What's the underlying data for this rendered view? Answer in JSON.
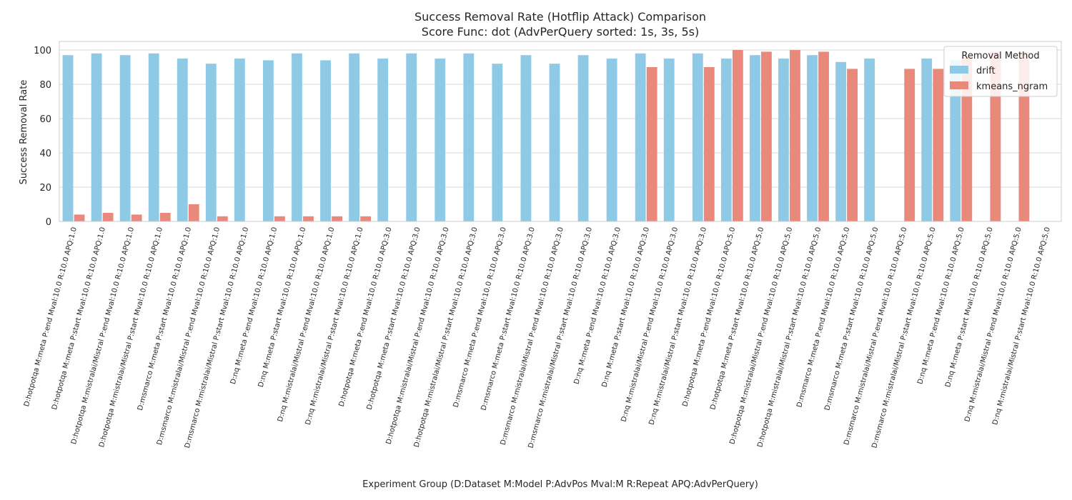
{
  "chart_data": {
    "type": "bar",
    "title": "Success Removal Rate (Hotflip Attack) Comparison",
    "subtitle": "Score Func: dot (AdvPerQuery sorted: 1s, 3s, 5s)",
    "xlabel": "Experiment Group (D:Dataset M:Model P:AdvPos Mval:M R:Repeat APQ:AdvPerQuery)",
    "ylabel": "Success Removal Rate",
    "ylim": [
      0,
      105
    ],
    "yticks": [
      0,
      20,
      40,
      60,
      80,
      100
    ],
    "grid": true,
    "legend": {
      "title": "Removal Method",
      "placement": "top-right"
    },
    "categories": [
      "D:hotpotqa M:meta P:end Mval:10.0 R:10.0 APQ:1.0",
      "D:hotpotqa M:meta P:start Mval:10.0 R:10.0 APQ:1.0",
      "D:hotpotqa M:mistralai/Mistral P:end Mval:10.0 R:10.0 APQ:1.0",
      "D:hotpotqa M:mistralai/Mistral P:start Mval:10.0 R:10.0 APQ:1.0",
      "D:msmarco M:meta P:start Mval:10.0 R:10.0 APQ:1.0",
      "D:msmarco M:mistralai/Mistral P:end Mval:10.0 R:10.0 APQ:1.0",
      "D:msmarco M:mistralai/Mistral P:start Mval:10.0 R:10.0 APQ:1.0",
      "D:nq M:meta P:end Mval:10.0 R:10.0 APQ:1.0",
      "D:nq M:meta P:start Mval:10.0 R:10.0 APQ:1.0",
      "D:nq M:mistralai/Mistral P:end Mval:10.0 R:10.0 APQ:1.0",
      "D:nq M:mistralai/Mistral P:start Mval:10.0 R:10.0 APQ:1.0",
      "D:hotpotqa M:meta P:end Mval:10.0 R:10.0 APQ:3.0",
      "D:hotpotqa M:meta P:start Mval:10.0 R:10.0 APQ:3.0",
      "D:hotpotqa M:mistralai/Mistral P:end Mval:10.0 R:10.0 APQ:3.0",
      "D:hotpotqa M:mistralai/Mistral P:start Mval:10.0 R:10.0 APQ:3.0",
      "D:msmarco M:meta P:end Mval:10.0 R:10.0 APQ:3.0",
      "D:msmarco M:meta P:start Mval:10.0 R:10.0 APQ:3.0",
      "D:msmarco M:mistralai/Mistral P:end Mval:10.0 R:10.0 APQ:3.0",
      "D:msmarco M:mistralai/Mistral P:start Mval:10.0 R:10.0 APQ:3.0",
      "D:nq M:meta P:end Mval:10.0 R:10.0 APQ:3.0",
      "D:nq M:meta P:start Mval:10.0 R:10.0 APQ:3.0",
      "D:nq M:mistralai/Mistral P:end Mval:10.0 R:10.0 APQ:3.0",
      "D:nq M:mistralai/Mistral P:start Mval:10.0 R:10.0 APQ:3.0",
      "D:hotpotqa M:meta P:end Mval:10.0 R:10.0 APQ:5.0",
      "D:hotpotqa M:meta P:start Mval:10.0 R:10.0 APQ:5.0",
      "D:hotpotqa M:mistralai/Mistral P:end Mval:10.0 R:10.0 APQ:5.0",
      "D:hotpotqa M:mistralai/Mistral P:start Mval:10.0 R:10.0 APQ:5.0",
      "D:msmarco M:meta P:end Mval:10.0 R:10.0 APQ:5.0",
      "D:msmarco M:meta P:start Mval:10.0 R:10.0 APQ:5.0",
      "D:msmarco M:mistralai/Mistral P:end Mval:10.0 R:10.0 APQ:5.0",
      "D:msmarco M:mistralai/Mistral P:start Mval:10.0 R:10.0 APQ:5.0",
      "D:nq M:meta P:end Mval:10.0 R:10.0 APQ:5.0",
      "D:nq M:meta P:start Mval:10.0 R:10.0 APQ:5.0",
      "D:nq M:mistralai/Mistral P:end Mval:10.0 R:10.0 APQ:5.0",
      "D:nq M:mistralai/Mistral P:start Mval:10.0 R:10.0 APQ:5.0"
    ],
    "series": [
      {
        "name": "drift",
        "color": "#8ecae6",
        "values": [
          97,
          98,
          97,
          98,
          95,
          92,
          95,
          94,
          98,
          94,
          98,
          95,
          98,
          95,
          98,
          92,
          97,
          92,
          97,
          95,
          98,
          95,
          98,
          95,
          97,
          95,
          97,
          93,
          95,
          null,
          95,
          94,
          null,
          null,
          null
        ]
      },
      {
        "name": "kmeans_ngram",
        "color": "#e8897b",
        "values": [
          4,
          5,
          4,
          5,
          10,
          3,
          null,
          3,
          3,
          3,
          3,
          null,
          null,
          null,
          null,
          null,
          null,
          null,
          null,
          null,
          90,
          null,
          90,
          100,
          99,
          100,
          99,
          89,
          null,
          89,
          89,
          96,
          99,
          99,
          null
        ]
      }
    ]
  }
}
